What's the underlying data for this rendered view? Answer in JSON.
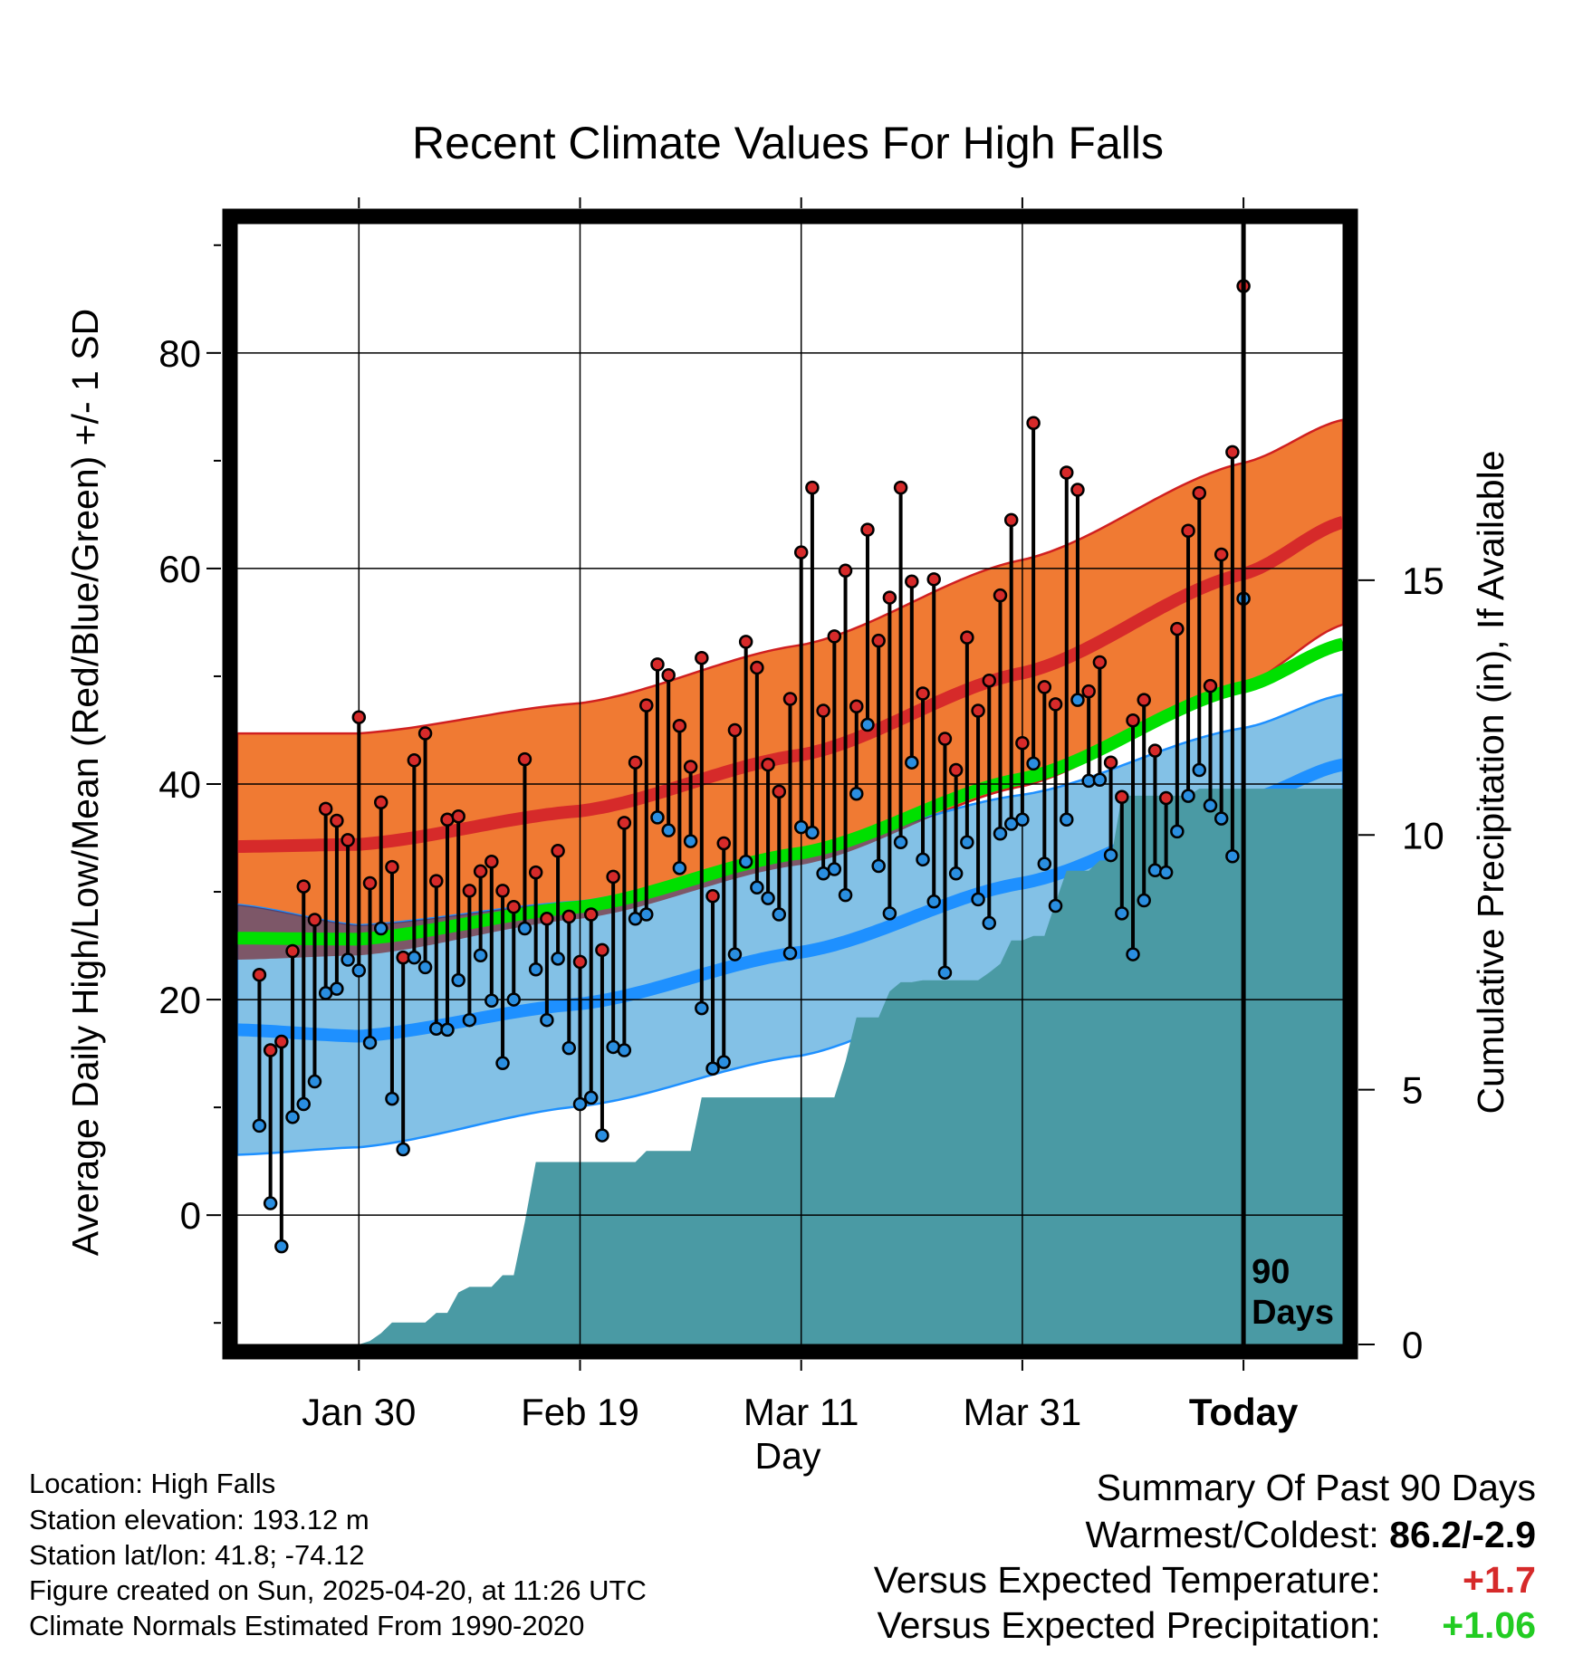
{
  "chart_data": {
    "type": "line",
    "title": "Recent Climate Values For High Falls",
    "xlabel": "Day",
    "ylabel_left": "Average Daily High/Low/Mean (Red/Blue/Green) +/- 1 SD",
    "ylabel_right": "Cumulative Precipitation (in), If Available",
    "x_range_days": [
      -91,
      9
    ],
    "ylim_left": [
      -12,
      92
    ],
    "ylim_right": [
      0,
      22
    ],
    "grid": true,
    "x_tick_positions_days": [
      -80,
      -60,
      -40,
      -20,
      0
    ],
    "x_tick_labels": [
      "Jan 30",
      "Feb 19",
      "Mar 11",
      "Mar 31",
      "Today"
    ],
    "y_ticks_left": [
      0,
      20,
      40,
      60,
      80
    ],
    "y_ticks_right": [
      0,
      5,
      10,
      15
    ],
    "today_marker": {
      "day": 0,
      "label_line1": "90",
      "label_line2": "Days"
    },
    "normals": {
      "anchor_days": [
        -91,
        -80,
        -60,
        -40,
        -20,
        0,
        9
      ],
      "high_mean": [
        34.2,
        34.4,
        37.5,
        42.7,
        50.3,
        59.5,
        64.3
      ],
      "high_sd": [
        10.5,
        10.3,
        10.0,
        10.2,
        10.5,
        10.3,
        9.5
      ],
      "low_mean": [
        17.2,
        16.6,
        19.6,
        24.4,
        30.8,
        38.4,
        41.8
      ],
      "low_sd": [
        11.6,
        10.3,
        9.5,
        9.6,
        8.2,
        6.8,
        6.5
      ],
      "mean_mean": [
        25.7,
        25.6,
        28.6,
        33.6,
        40.5,
        49.0,
        53.0
      ]
    },
    "highs": [
      22.3,
      15.3,
      16.1,
      24.5,
      30.5,
      27.4,
      37.7,
      36.6,
      34.8,
      46.2,
      30.8,
      38.3,
      32.3,
      23.9,
      42.2,
      44.7,
      31.0,
      36.7,
      37.0,
      30.1,
      31.9,
      32.8,
      30.1,
      28.6,
      42.3,
      31.8,
      27.5,
      33.8,
      27.7,
      23.5,
      27.9,
      24.6,
      31.4,
      36.4,
      42.0,
      47.3,
      51.1,
      50.1,
      45.4,
      41.6,
      51.7,
      29.6,
      34.5,
      45.0,
      53.2,
      50.8,
      41.8,
      39.3,
      47.9,
      61.5,
      67.5,
      46.8,
      53.7,
      59.8,
      47.2,
      63.6,
      53.3,
      57.3,
      67.5,
      58.8,
      48.4,
      59.0,
      44.2,
      41.3,
      53.6,
      46.8,
      49.6,
      57.5,
      64.5,
      43.8,
      73.5,
      49.0,
      47.4,
      68.9,
      67.3,
      48.6,
      51.3,
      42.0,
      38.8,
      45.9,
      47.8,
      43.1,
      38.7,
      54.4,
      63.5,
      67.0,
      49.1,
      61.3,
      70.8,
      86.2
    ],
    "lows": [
      8.3,
      1.1,
      -2.9,
      9.1,
      10.3,
      12.4,
      20.6,
      21.0,
      23.7,
      22.7,
      16.0,
      26.6,
      10.8,
      6.1,
      23.9,
      23.0,
      17.3,
      17.2,
      21.8,
      18.1,
      24.1,
      19.9,
      14.1,
      20.0,
      26.6,
      22.8,
      18.1,
      23.8,
      15.5,
      10.3,
      10.9,
      7.4,
      15.6,
      15.3,
      27.5,
      27.9,
      36.9,
      35.7,
      32.2,
      34.7,
      19.2,
      13.6,
      14.2,
      24.2,
      32.8,
      30.4,
      29.4,
      27.9,
      24.3,
      36.0,
      35.5,
      31.7,
      32.1,
      29.7,
      39.1,
      45.5,
      32.4,
      28.0,
      34.6,
      42.0,
      33.0,
      29.1,
      22.5,
      31.7,
      34.6,
      29.3,
      27.1,
      35.4,
      36.3,
      36.7,
      41.9,
      32.6,
      28.7,
      36.7,
      47.8,
      40.3,
      40.4,
      33.4,
      28.0,
      24.2,
      29.2,
      32.0,
      31.8,
      35.6,
      38.9,
      41.3,
      38.0,
      36.8,
      33.3,
      57.2
    ],
    "precip_cumulative": {
      "days": [
        -91,
        -80,
        -79,
        -78,
        -77,
        -76,
        -75,
        -74,
        -73,
        -72,
        -71,
        -70,
        -69,
        -68,
        -67,
        -66,
        -65,
        -64,
        -63,
        -62,
        -61,
        -60,
        -59,
        -58,
        -57,
        -56,
        -55,
        -54,
        -53,
        -52,
        -51,
        -50,
        -49,
        -48,
        -47,
        -46,
        -45,
        -44,
        -43,
        -42,
        -41,
        -40,
        -39,
        -38,
        -37,
        -36,
        -35,
        -34,
        -33,
        -32,
        -31,
        -30,
        -29,
        -28,
        -27,
        -26,
        -25,
        -24,
        -23,
        -22,
        -21,
        -20,
        -19,
        -18,
        -17,
        -16,
        -15,
        -14,
        -13,
        -12,
        -11,
        -10,
        -9,
        -8,
        -7,
        -6,
        -5,
        -4,
        -3,
        -2,
        -1,
        0,
        9
      ],
      "values": [
        0,
        0,
        0.07,
        0.22,
        0.43,
        0.43,
        0.43,
        0.43,
        0.62,
        0.62,
        1.02,
        1.13,
        1.13,
        1.13,
        1.36,
        1.36,
        2.4,
        3.58,
        3.58,
        3.58,
        3.58,
        3.58,
        3.58,
        3.58,
        3.58,
        3.58,
        3.58,
        3.8,
        3.8,
        3.8,
        3.8,
        3.8,
        4.85,
        4.85,
        4.85,
        4.85,
        4.85,
        4.85,
        4.85,
        4.85,
        4.85,
        4.85,
        4.85,
        4.85,
        4.85,
        5.55,
        6.42,
        6.42,
        6.42,
        6.93,
        7.11,
        7.11,
        7.15,
        7.15,
        7.15,
        7.15,
        7.15,
        7.15,
        7.3,
        7.47,
        7.93,
        7.93,
        8.02,
        8.02,
        8.67,
        9.3,
        9.3,
        9.3,
        9.5,
        9.5,
        10.77,
        10.77,
        10.77,
        10.77,
        10.77,
        10.77,
        10.77,
        10.91,
        10.91,
        10.91,
        10.91,
        10.91,
        10.91
      ]
    },
    "colors": {
      "high_band": "#f07a33",
      "high_mean": "#d62a2a",
      "low_band": "#83c1e6",
      "low_mean": "#1e90ff",
      "mean": "#00e000",
      "precip": "#4a9aa4",
      "high_point": "#d62a2a",
      "low_point": "#2a8ee0",
      "frame": "#000000"
    }
  },
  "footer": {
    "location": "Location: High Falls",
    "elevation": "Station elevation: 193.12 m",
    "latlon": "Station lat/lon: 41.8; -74.12",
    "created": "Figure created on Sun, 2025-04-20, at 11:26 UTC",
    "normals": "Climate Normals Estimated From 1990-2020"
  },
  "summary": {
    "heading": "Summary Of Past 90 Days",
    "extremes_label": "Warmest/Coldest:",
    "extremes_value": "86.2/-2.9",
    "temp_label": "Versus Expected Temperature:",
    "temp_value": "+1.7",
    "temp_color": "#d62a2a",
    "precip_label": "Versus Expected Precipitation:",
    "precip_value": "+1.06",
    "precip_color": "#22cc22"
  }
}
